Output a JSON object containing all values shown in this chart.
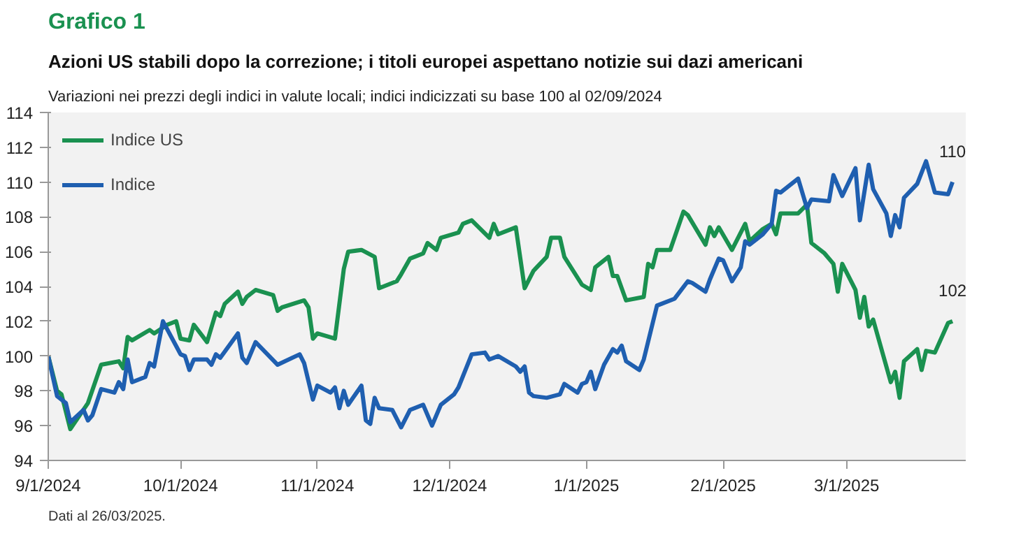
{
  "chart_data": {
    "type": "line",
    "title": "Grafico 1",
    "subtitle": "Azioni US stabili dopo la correzione; i titoli europei aspettano notizie sui dazi americani",
    "annotations": [
      "Variazioni nei prezzi degli indici in valute locali; indici indicizzati su base 100 al 02/09/2024",
      "Dati al 26/03/2025.",
      {
        "text": "110",
        "x": "2025-03-25",
        "y": 110
      },
      {
        "text": "102",
        "x": "2025-03-25",
        "y": 102
      }
    ],
    "series": [
      {
        "name": "Indice US",
        "color": "#1a9150",
        "x": [
          "2024-09-01",
          "2024-09-03",
          "2024-09-04",
          "2024-09-06",
          "2024-09-10",
          "2024-09-13",
          "2024-09-17",
          "2024-09-18",
          "2024-09-19",
          "2024-09-20",
          "2024-09-24",
          "2024-09-25",
          "2024-09-28",
          "2024-09-30",
          "2024-10-01",
          "2024-10-03",
          "2024-10-04",
          "2024-10-07",
          "2024-10-09",
          "2024-10-10",
          "2024-10-11",
          "2024-10-14",
          "2024-10-15",
          "2024-10-16",
          "2024-10-18",
          "2024-10-22",
          "2024-10-23",
          "2024-10-24",
          "2024-10-29",
          "2024-10-30",
          "2024-10-31",
          "2024-11-01",
          "2024-11-05",
          "2024-11-07",
          "2024-11-08",
          "2024-11-11",
          "2024-11-14",
          "2024-11-15",
          "2024-11-19",
          "2024-11-20",
          "2024-11-22",
          "2024-11-25",
          "2024-11-26",
          "2024-11-28",
          "2024-11-29",
          "2024-12-03",
          "2024-12-04",
          "2024-12-06",
          "2024-12-10",
          "2024-12-11",
          "2024-12-12",
          "2024-12-16",
          "2024-12-18",
          "2024-12-20",
          "2024-12-23",
          "2024-12-24",
          "2024-12-26",
          "2024-12-27",
          "2024-12-31",
          "2025-01-02",
          "2025-01-03",
          "2025-01-06",
          "2025-01-07",
          "2025-01-08",
          "2025-01-10",
          "2025-01-14",
          "2025-01-15",
          "2025-01-16",
          "2025-01-17",
          "2025-01-20",
          "2025-01-23",
          "2025-01-24",
          "2025-01-28",
          "2025-01-29",
          "2025-01-30",
          "2025-01-31",
          "2025-02-03",
          "2025-02-06",
          "2025-02-07",
          "2025-02-10",
          "2025-02-12",
          "2025-02-13",
          "2025-02-14",
          "2025-02-18",
          "2025-02-20",
          "2025-02-21",
          "2025-02-24",
          "2025-02-26",
          "2025-02-27",
          "2025-02-28",
          "2025-03-03",
          "2025-03-04",
          "2025-03-05",
          "2025-03-06",
          "2025-03-07",
          "2025-03-11",
          "2025-03-12",
          "2025-03-13",
          "2025-03-14",
          "2025-03-17",
          "2025-03-18",
          "2025-03-19",
          "2025-03-21",
          "2025-03-24",
          "2025-03-25"
        ],
        "values": [
          100,
          98,
          97.8,
          95.8,
          97.3,
          99.5,
          99.7,
          99.3,
          101.1,
          100.9,
          101.5,
          101.3,
          101.8,
          102,
          101,
          100.9,
          101.8,
          100.8,
          102.5,
          102.3,
          103,
          103.7,
          103,
          103.4,
          103.8,
          103.5,
          102.6,
          102.8,
          103.2,
          102.8,
          101,
          101.3,
          101,
          105,
          106,
          106.1,
          105.7,
          103.9,
          104.3,
          104.7,
          105.6,
          105.9,
          106.5,
          106.1,
          106.8,
          107.1,
          107.6,
          107.8,
          106.8,
          107.6,
          107,
          107.4,
          103.9,
          104.9,
          105.7,
          106.8,
          106.8,
          105.7,
          104.1,
          103.8,
          105.1,
          105.7,
          104.6,
          104.6,
          103.2,
          103.4,
          105.3,
          105.1,
          106.1,
          106.1,
          108.3,
          108.1,
          106.4,
          107.4,
          106.9,
          107.4,
          106.1,
          107.6,
          106.6,
          107.3,
          107.6,
          107,
          108.2,
          108.2,
          108.7,
          106.5,
          105.9,
          105.3,
          103.7,
          105.3,
          103.8,
          102.2,
          103.4,
          101.7,
          102.1,
          98.5,
          99.1,
          97.6,
          99.7,
          100.4,
          99.2,
          100.3,
          100.2,
          101.9,
          102
        ]
      },
      {
        "name": "Indice",
        "color": "#1f5fb0",
        "x": [
          "2024-09-01",
          "2024-09-03",
          "2024-09-05",
          "2024-09-06",
          "2024-09-09",
          "2024-09-10",
          "2024-09-11",
          "2024-09-13",
          "2024-09-16",
          "2024-09-17",
          "2024-09-18",
          "2024-09-19",
          "2024-09-20",
          "2024-09-23",
          "2024-09-24",
          "2024-09-25",
          "2024-09-27",
          "2024-10-01",
          "2024-10-02",
          "2024-10-03",
          "2024-10-04",
          "2024-10-07",
          "2024-10-08",
          "2024-10-09",
          "2024-10-10",
          "2024-10-14",
          "2024-10-15",
          "2024-10-16",
          "2024-10-18",
          "2024-10-23",
          "2024-10-28",
          "2024-10-29",
          "2024-10-31",
          "2024-11-01",
          "2024-11-04",
          "2024-11-05",
          "2024-11-06",
          "2024-11-07",
          "2024-11-08",
          "2024-11-11",
          "2024-11-12",
          "2024-11-13",
          "2024-11-14",
          "2024-11-15",
          "2024-11-18",
          "2024-11-20",
          "2024-11-22",
          "2024-11-25",
          "2024-11-27",
          "2024-11-29",
          "2024-12-02",
          "2024-12-03",
          "2024-12-06",
          "2024-12-09",
          "2024-12-10",
          "2024-12-12",
          "2024-12-16",
          "2024-12-17",
          "2024-12-18",
          "2024-12-19",
          "2024-12-20",
          "2024-12-23",
          "2024-12-26",
          "2024-12-27",
          "2024-12-30",
          "2024-12-31",
          "2025-01-01",
          "2025-01-02",
          "2025-01-03",
          "2025-01-05",
          "2025-01-07",
          "2025-01-08",
          "2025-01-09",
          "2025-01-10",
          "2025-01-13",
          "2025-01-14",
          "2025-01-17",
          "2025-01-21",
          "2025-01-24",
          "2025-01-25",
          "2025-01-28",
          "2025-01-29",
          "2025-01-31",
          "2025-02-01",
          "2025-02-03",
          "2025-02-05",
          "2025-02-06",
          "2025-02-07",
          "2025-02-10",
          "2025-02-12",
          "2025-02-13",
          "2025-02-14",
          "2025-02-18",
          "2025-02-20",
          "2025-02-21",
          "2025-02-25",
          "2025-02-26",
          "2025-02-28",
          "2025-03-03",
          "2025-03-04",
          "2025-03-06",
          "2025-03-07",
          "2025-03-10",
          "2025-03-11",
          "2025-03-12",
          "2025-03-13",
          "2025-03-14",
          "2025-03-17",
          "2025-03-19",
          "2025-03-21",
          "2025-03-24",
          "2025-03-25"
        ],
        "values": [
          100,
          97.7,
          97.3,
          96.2,
          96.9,
          96.3,
          96.6,
          98.1,
          97.9,
          98.5,
          98.1,
          99.8,
          98.5,
          98.8,
          99.6,
          99.4,
          102,
          100.1,
          100,
          99.2,
          99.8,
          99.8,
          99.5,
          100.1,
          99.9,
          101.3,
          99.9,
          99.6,
          100.8,
          99.5,
          100.1,
          99.6,
          97.5,
          98.3,
          97.9,
          98.2,
          97,
          98,
          97.2,
          98.3,
          96.3,
          96.1,
          97.6,
          97,
          96.9,
          95.9,
          96.9,
          97.2,
          96,
          97.2,
          97.8,
          98.2,
          100.1,
          100.2,
          99.8,
          100,
          99.4,
          99.1,
          99.4,
          97.9,
          97.7,
          97.6,
          97.8,
          98.4,
          97.9,
          98.4,
          98.5,
          99.1,
          98.1,
          99.5,
          100.4,
          100.2,
          100.6,
          99.7,
          99.2,
          99.8,
          102.9,
          103.3,
          104.3,
          104.2,
          103.7,
          104.4,
          105.6,
          105.5,
          104.3,
          105.1,
          106.6,
          106.4,
          107,
          107.6,
          109.5,
          109.4,
          110.2,
          108.5,
          109,
          108.9,
          110.4,
          109.2,
          110.8,
          107.8,
          111,
          109.6,
          108.2,
          106.9,
          108.1,
          107.4,
          109.1,
          109.9,
          111.2,
          109.4,
          109.3,
          110
        ]
      }
    ],
    "xlim": [
      "2024-09-01",
      "2025-03-28"
    ],
    "xticks": [
      {
        "value": "2024-09-01",
        "label": "9/1/2024"
      },
      {
        "value": "2024-10-01",
        "label": "10/1/2024"
      },
      {
        "value": "2024-11-01",
        "label": "11/1/2024"
      },
      {
        "value": "2024-12-01",
        "label": "12/1/2024"
      },
      {
        "value": "2025-01-01",
        "label": "1/1/2025"
      },
      {
        "value": "2025-02-01",
        "label": "2/1/2025"
      },
      {
        "value": "2025-03-01",
        "label": "3/1/2025"
      }
    ],
    "ylim": [
      94,
      114
    ],
    "yticks": [
      94,
      96,
      98,
      100,
      102,
      104,
      106,
      108,
      110,
      112,
      114
    ],
    "grid": false,
    "legend": "top left",
    "line_style": "solid",
    "marker": "none"
  }
}
